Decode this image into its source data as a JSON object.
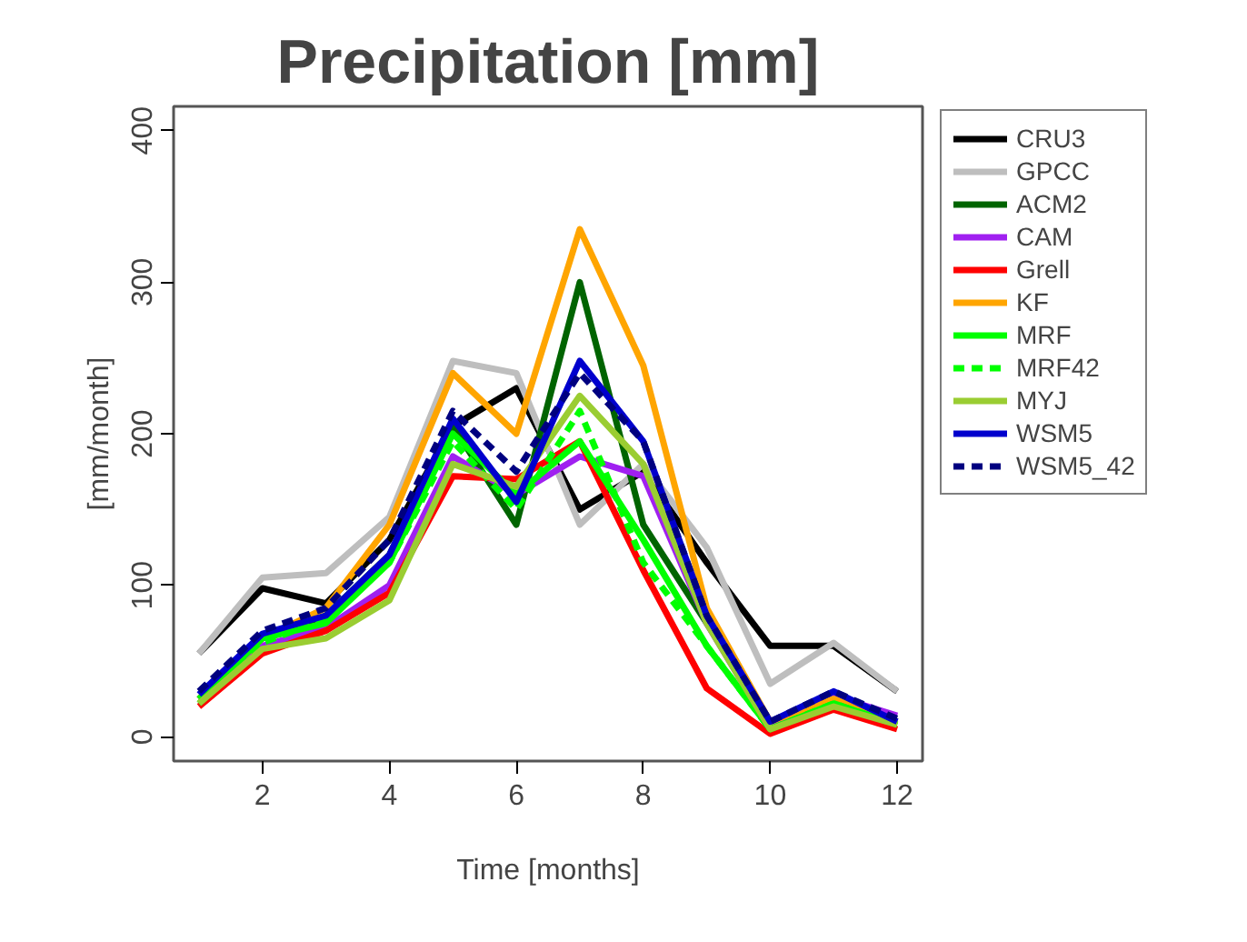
{
  "chart_data": {
    "type": "line",
    "title": "Precipitation [mm]",
    "xlabel": "Time [months]",
    "ylabel": "[mm/month]",
    "x": [
      1,
      2,
      3,
      4,
      5,
      6,
      7,
      8,
      9,
      10,
      11,
      12
    ],
    "xlim": [
      0.6,
      12.4
    ],
    "ylim": [
      -16,
      416
    ],
    "xticks": [
      2,
      4,
      6,
      8,
      10,
      12
    ],
    "yticks": [
      0,
      100,
      200,
      300,
      400
    ],
    "grid": false,
    "legend": "right",
    "marker": "none",
    "series": [
      {
        "name": "CRU3",
        "color": "#000000",
        "values": [
          55,
          98,
          88,
          130,
          205,
          230,
          150,
          175,
          115,
          60,
          60,
          30
        ]
      },
      {
        "name": "GPCC",
        "color": "#bebebe",
        "values": [
          55,
          105,
          108,
          145,
          248,
          240,
          140,
          180,
          125,
          35,
          62,
          30
        ]
      },
      {
        "name": "ACM2",
        "color": "#006400",
        "values": [
          25,
          65,
          80,
          120,
          205,
          140,
          300,
          140,
          75,
          10,
          25,
          10
        ]
      },
      {
        "name": "CAM",
        "color": "#a020f0",
        "values": [
          25,
          60,
          72,
          100,
          185,
          160,
          185,
          172,
          75,
          5,
          27,
          14
        ]
      },
      {
        "name": "Grell",
        "color": "#ff0000",
        "values": [
          20,
          55,
          70,
          95,
          172,
          170,
          195,
          110,
          32,
          2,
          18,
          5
        ]
      },
      {
        "name": "KF",
        "color": "#ffa500",
        "values": [
          25,
          65,
          85,
          140,
          240,
          200,
          335,
          245,
          85,
          10,
          25,
          10
        ]
      },
      {
        "name": "MRF",
        "color": "#00ff00",
        "values": [
          25,
          65,
          75,
          115,
          200,
          160,
          195,
          130,
          60,
          5,
          22,
          8
        ]
      },
      {
        "name": "MRF42",
        "color": "#00ff00",
        "line_style": "dashed",
        "values": [
          22,
          62,
          78,
          115,
          195,
          150,
          215,
          115,
          60,
          5,
          22,
          8
        ]
      },
      {
        "name": "MYJ",
        "color": "#9acd32",
        "values": [
          22,
          58,
          65,
          90,
          180,
          165,
          225,
          180,
          75,
          5,
          20,
          8
        ]
      },
      {
        "name": "WSM5",
        "color": "#0000cd",
        "values": [
          28,
          68,
          80,
          120,
          210,
          155,
          248,
          195,
          80,
          10,
          30,
          10
        ]
      },
      {
        "name": "WSM5_42",
        "color": "#000080",
        "line_style": "dashed",
        "values": [
          30,
          70,
          85,
          130,
          215,
          175,
          240,
          195,
          80,
          10,
          30,
          12
        ]
      }
    ]
  }
}
